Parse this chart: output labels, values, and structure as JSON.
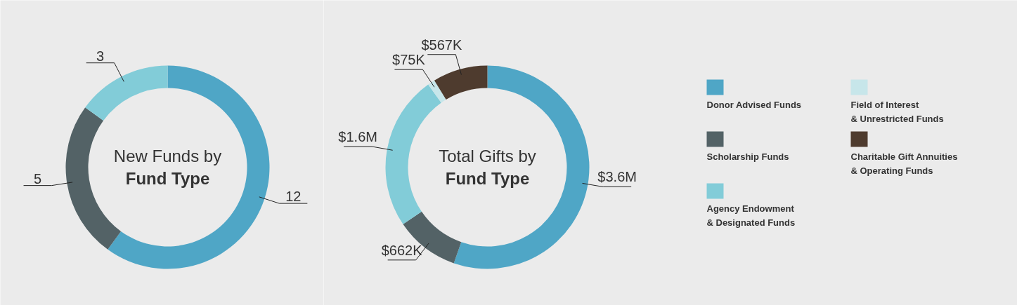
{
  "chart_data": [
    {
      "type": "donut",
      "title": "New Funds by\nFund Type",
      "categories": [
        null,
        null,
        null
      ],
      "values": [
        12,
        5,
        3
      ],
      "colors": [
        "#4fa6c6",
        "#536266",
        "#82ccd8"
      ],
      "data_labels": true,
      "legend": false
    },
    {
      "type": "donut",
      "title": "Total Gifts by\nFund Type",
      "categories": [
        "Donor Advised Funds",
        "Scholarship Funds",
        "Agency Endowment\n& Designated Funds",
        "Field of Interest\n& Unrestricted Funds",
        "Charitable Gift Annuities\n& Operating Funds"
      ],
      "values": [
        3600000,
        662000,
        1600000,
        75000,
        567000
      ],
      "value_labels": [
        "$3.6M",
        "$662K",
        "$1.6M",
        "$75K",
        "$567K"
      ],
      "colors": [
        "#4fa6c6",
        "#536266",
        "#82ccd8",
        "#c7e6ea",
        "#4e3b2e"
      ],
      "legend": "right"
    }
  ]
}
